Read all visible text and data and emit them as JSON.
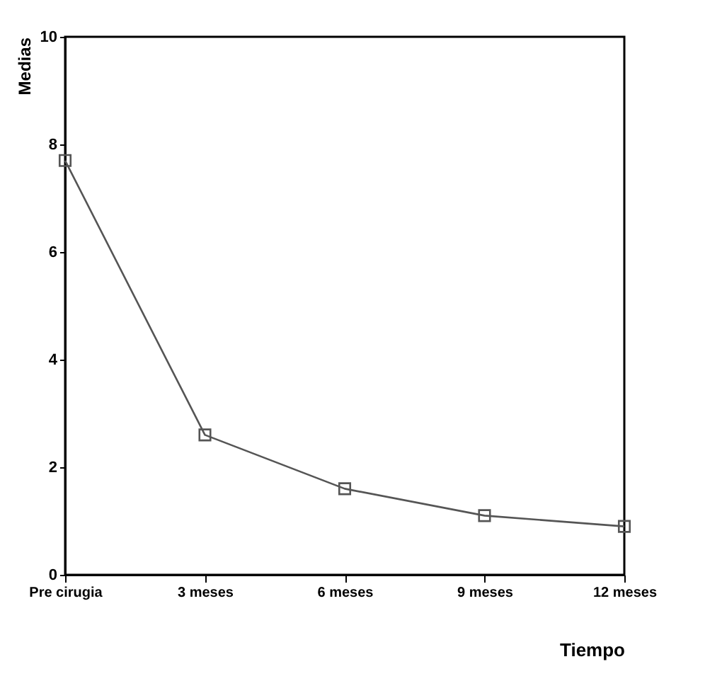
{
  "chart_data": {
    "type": "line",
    "xlabel": "Tiempo",
    "ylabel": "Medias",
    "categories": [
      "Pre cirugia",
      "3 meses",
      "6 meses",
      "9 meses",
      "12 meses"
    ],
    "series": [
      {
        "color": "#555555",
        "values": [
          7.7,
          2.6,
          1.6,
          1.1,
          0.9
        ]
      }
    ],
    "ylim": [
      0,
      10
    ],
    "yticks": [
      0,
      2,
      4,
      6,
      8,
      10
    ],
    "grid": false,
    "marker": "square",
    "line_style": "solid"
  }
}
